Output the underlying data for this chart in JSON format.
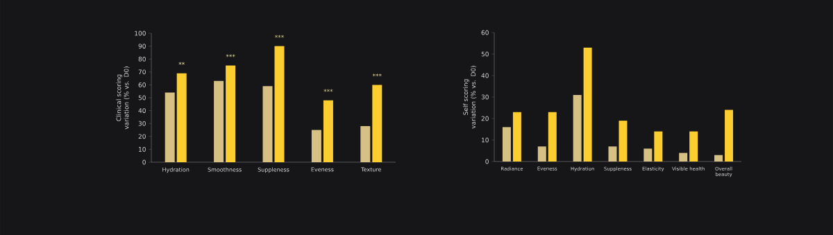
{
  "chart_data": [
    {
      "type": "bar",
      "ylabel": "Clinical scoring variation (% vs. D0)",
      "categories": [
        "Hydration",
        "Smoothness",
        "Suppleness",
        "Eveness",
        "Texture"
      ],
      "series": [
        {
          "color": "#d6c084",
          "values": [
            54,
            63,
            59,
            25,
            28
          ]
        },
        {
          "color": "#fccd2f",
          "values": [
            69,
            75,
            90,
            48,
            60
          ]
        }
      ],
      "ylim": [
        0,
        100
      ],
      "yticks": [
        0,
        10,
        20,
        30,
        40,
        50,
        60,
        70,
        80,
        90,
        100
      ],
      "annotations": [
        "**",
        "***",
        "***",
        "***",
        "***"
      ]
    },
    {
      "type": "bar",
      "ylabel": "Self scoring variation (% vs. D0)",
      "categories": [
        "Radiance",
        "Eveness",
        "Hydration",
        "Suppleness",
        "Elasticity",
        "Visible health",
        "Overall beauty"
      ],
      "series": [
        {
          "color": "#d6c084",
          "values": [
            16,
            7,
            31,
            7,
            6,
            4,
            3
          ]
        },
        {
          "color": "#fccd2f",
          "values": [
            23,
            23,
            53,
            19,
            14,
            14,
            24
          ]
        }
      ],
      "ylim": [
        0,
        60
      ],
      "yticks": [
        0,
        10,
        20,
        30,
        40,
        50,
        60
      ]
    }
  ]
}
